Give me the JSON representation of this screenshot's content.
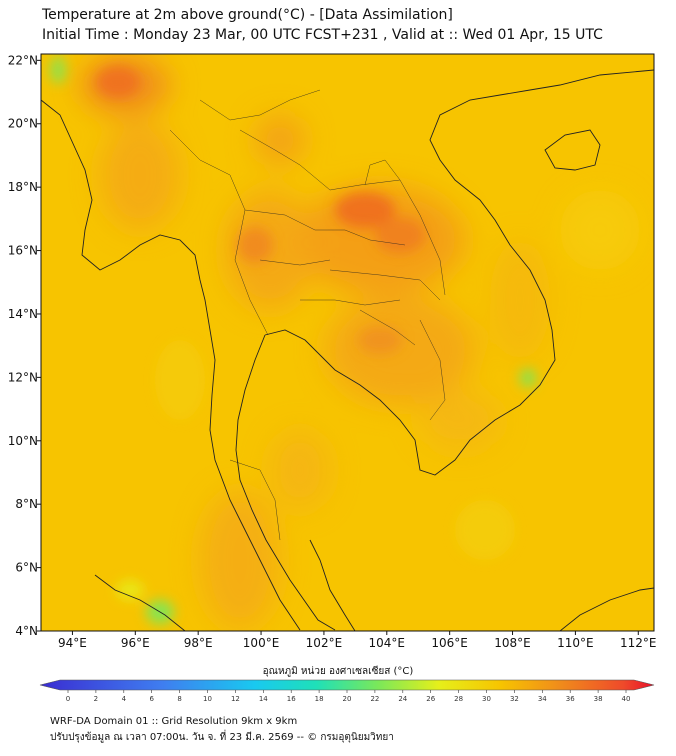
{
  "header": {
    "title_line1": "Temperature at 2m above ground(°C) - [Data Assimilation]",
    "title_line2": "Initial Time : Monday 23 Mar, 00 UTC FCST+231 , Valid at :: Wed 01 Apr, 15 UTC"
  },
  "map": {
    "lon_ticks": [
      "94°E",
      "96°E",
      "98°E",
      "100°E",
      "102°E",
      "104°E",
      "106°E",
      "108°E",
      "110°E",
      "112°E"
    ],
    "lon_values": [
      94,
      96,
      98,
      100,
      102,
      104,
      106,
      108,
      110,
      112
    ],
    "lat_ticks": [
      "22°N",
      "20°N",
      "18°N",
      "16°N",
      "14°N",
      "12°N",
      "10°N",
      "8°N",
      "6°N",
      "4°N"
    ],
    "lat_values": [
      22,
      20,
      18,
      16,
      14,
      12,
      10,
      8,
      6,
      4
    ],
    "lon_range": [
      93,
      112.5
    ],
    "lat_range": [
      4,
      22.2
    ],
    "base_color": "#f7c400",
    "regions": [
      {
        "name": "hot-northeast-thailand",
        "lon": 103,
        "lat": 16.7,
        "temp": 36
      },
      {
        "name": "hot-north-myanmar",
        "lon": 95.6,
        "lat": 21.3,
        "temp": 34
      },
      {
        "name": "warm-central-thailand",
        "lon": 100.5,
        "lat": 15.5,
        "temp": 33
      },
      {
        "name": "warm-cambodia",
        "lon": 104,
        "lat": 13,
        "temp": 33
      },
      {
        "name": "cool-sumatra-north",
        "lon": 97,
        "lat": 4.5,
        "temp": 22
      },
      {
        "name": "cool-vietnam-highland",
        "lon": 108.3,
        "lat": 12,
        "temp": 24
      }
    ]
  },
  "colorbar": {
    "title": "อุณหภูมิ หน่วย องศาเซลเซียส (°C)",
    "min": 0,
    "max": 40,
    "tick_labels": [
      "0",
      "2",
      "4",
      "6",
      "8",
      "10",
      "12",
      "14",
      "16",
      "18",
      "20",
      "22",
      "24",
      "26",
      "28",
      "30",
      "32",
      "34",
      "36",
      "38",
      "40"
    ],
    "stops": [
      {
        "v": 0,
        "c": "#3a2dd1"
      },
      {
        "v": 8,
        "c": "#3f7ef0"
      },
      {
        "v": 14,
        "c": "#19c9f0"
      },
      {
        "v": 18,
        "c": "#1fe0b8"
      },
      {
        "v": 22,
        "c": "#7ae85a"
      },
      {
        "v": 26,
        "c": "#e6ef1a"
      },
      {
        "v": 30,
        "c": "#f7c400"
      },
      {
        "v": 34,
        "c": "#f08a1c"
      },
      {
        "v": 38,
        "c": "#ef4a2a"
      },
      {
        "v": 40,
        "c": "#e8102a"
      }
    ]
  },
  "footer": {
    "line1": "WRF-DA Domain 01 :: Grid Resolution 9km x 9km",
    "line2": "ปรับปรุงข้อมูล ณ เวลา 07:00น. วัน จ. ที่ 23 มี.ค. 2569 -- © กรมอุตุนิยมวิทยา"
  }
}
